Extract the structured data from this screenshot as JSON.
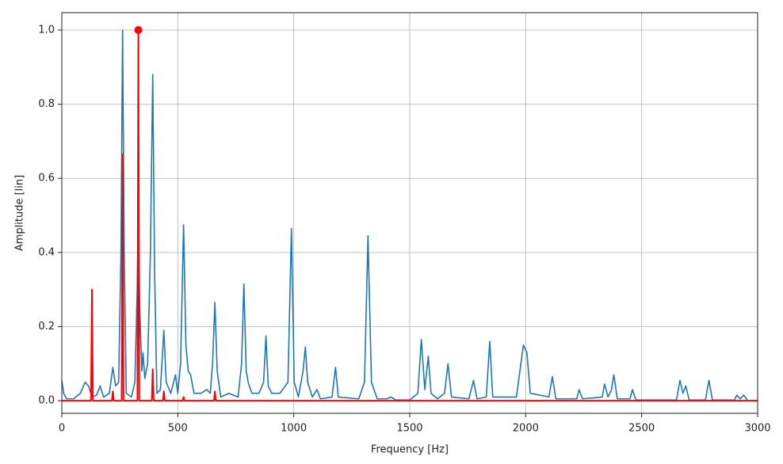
{
  "chart_data": {
    "type": "line",
    "xlabel": "Frequency [Hz]",
    "ylabel": "Amplitude [lin]",
    "xlim": [
      0,
      3000
    ],
    "ylim": [
      -0.034,
      1.047
    ],
    "xticks": [
      0,
      500,
      1000,
      1500,
      2000,
      2500,
      3000
    ],
    "yticks": [
      {
        "value": 0.0,
        "label": "0.0"
      },
      0.2,
      0.4,
      0.6,
      0.8,
      {
        "value": 1.0,
        "label": "1.0"
      }
    ],
    "grid": true,
    "series": [
      {
        "color": "#1f77b4",
        "x": [
          0,
          8,
          20,
          50,
          80,
          100,
          115,
          130,
          150,
          165,
          180,
          205,
          220,
          232,
          245,
          255,
          262,
          269,
          278,
          300,
          315,
          325,
          330,
          336,
          345,
          350,
          358,
          370,
          382,
          392,
          400,
          410,
          425,
          440,
          450,
          470,
          490,
          500,
          512,
          525,
          535,
          545,
          555,
          570,
          600,
          625,
          640,
          650,
          660,
          670,
          685,
          720,
          760,
          775,
          785,
          795,
          805,
          820,
          850,
          870,
          880,
          890,
          905,
          940,
          975,
          990,
          1002,
          1020,
          1040,
          1050,
          1060,
          1080,
          1100,
          1115,
          1165,
          1180,
          1192,
          1280,
          1305,
          1320,
          1335,
          1360,
          1400,
          1420,
          1440,
          1500,
          1535,
          1550,
          1565,
          1580,
          1592,
          1620,
          1650,
          1665,
          1680,
          1755,
          1775,
          1790,
          1830,
          1845,
          1858,
          1960,
          1975,
          1990,
          2005,
          2020,
          2100,
          2115,
          2130,
          2220,
          2230,
          2245,
          2330,
          2340,
          2355,
          2370,
          2380,
          2395,
          2450,
          2460,
          2475,
          2650,
          2665,
          2678,
          2690,
          2705,
          2775,
          2790,
          2805,
          2900,
          2910,
          2925,
          2940,
          2955
        ],
        "values": [
          0.055,
          0.02,
          0.005,
          0.005,
          0.02,
          0.05,
          0.04,
          0.01,
          0.015,
          0.04,
          0.01,
          0.02,
          0.09,
          0.04,
          0.05,
          0.4,
          1.0,
          0.4,
          0.02,
          0.01,
          0.05,
          0.3,
          0.52,
          0.25,
          0.08,
          0.13,
          0.06,
          0.1,
          0.4,
          0.88,
          0.35,
          0.02,
          0.03,
          0.19,
          0.05,
          0.02,
          0.07,
          0.02,
          0.1,
          0.475,
          0.15,
          0.08,
          0.07,
          0.02,
          0.02,
          0.03,
          0.02,
          0.1,
          0.265,
          0.08,
          0.01,
          0.02,
          0.01,
          0.1,
          0.315,
          0.08,
          0.045,
          0.02,
          0.02,
          0.05,
          0.175,
          0.04,
          0.02,
          0.02,
          0.05,
          0.465,
          0.05,
          0.01,
          0.08,
          0.145,
          0.05,
          0.01,
          0.03,
          0.005,
          0.01,
          0.09,
          0.01,
          0.005,
          0.05,
          0.445,
          0.05,
          0.005,
          0.005,
          0.01,
          0.002,
          0.002,
          0.02,
          0.165,
          0.03,
          0.12,
          0.02,
          0.005,
          0.02,
          0.1,
          0.01,
          0.005,
          0.055,
          0.005,
          0.01,
          0.16,
          0.01,
          0.01,
          0.08,
          0.15,
          0.13,
          0.02,
          0.01,
          0.065,
          0.005,
          0.005,
          0.03,
          0.005,
          0.01,
          0.045,
          0.01,
          0.03,
          0.07,
          0.005,
          0.005,
          0.03,
          0.002,
          0.002,
          0.055,
          0.02,
          0.04,
          0.002,
          0.002,
          0.055,
          0.002,
          0.002,
          0.015,
          0.005,
          0.015,
          0.002
        ]
      },
      {
        "color": "red",
        "x": [
          0,
          126,
          130,
          134,
          216,
          220,
          224,
          258,
          262,
          266,
          326,
          330,
          334,
          388,
          392,
          396,
          436,
          440,
          444,
          521,
          525,
          529,
          656,
          660,
          664,
          3000
        ],
        "values": [
          0,
          0,
          0.3,
          0,
          0,
          0.025,
          0,
          0,
          0.665,
          0,
          0,
          1.0,
          0,
          0,
          0.085,
          0,
          0,
          0.025,
          0,
          0,
          0.01,
          0,
          0,
          0.025,
          0,
          0
        ]
      }
    ],
    "marker": {
      "x": 330,
      "y": 1.0,
      "color": "red"
    }
  }
}
